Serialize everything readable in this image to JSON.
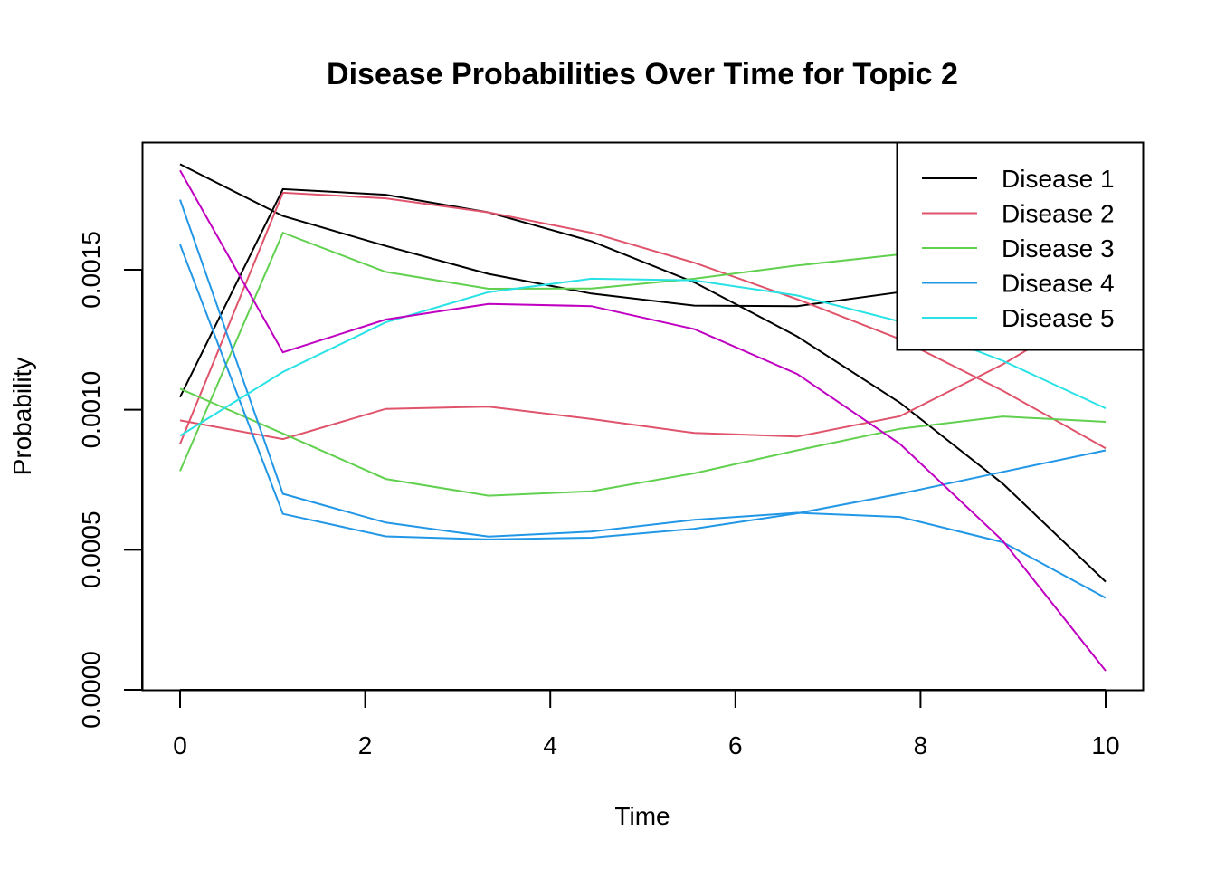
{
  "chart_data": {
    "type": "line",
    "title": "Disease Probabilities Over Time for Topic 2",
    "xlabel": "Time",
    "ylabel": "Probability",
    "xlim": [
      0,
      10
    ],
    "ylim": [
      0,
      0.0019
    ],
    "xticks": [
      0,
      2,
      4,
      6,
      8,
      10
    ],
    "xtick_labels": [
      "0",
      "2",
      "4",
      "6",
      "8",
      "10"
    ],
    "yticks": [
      0,
      0.0005,
      0.001,
      0.0015
    ],
    "ytick_labels": [
      "0.0000",
      "0.0005",
      "0.0010",
      "0.0015"
    ],
    "x": [
      0,
      1.111,
      2.222,
      3.333,
      4.444,
      5.556,
      6.667,
      7.778,
      8.889,
      10
    ],
    "legend_position": "top-right",
    "grid": false,
    "legend": [
      {
        "label": "Disease 1",
        "color": "#000000"
      },
      {
        "label": "Disease 2",
        "color": "#DF536B"
      },
      {
        "label": "Disease 3",
        "color": "#61D04F"
      },
      {
        "label": "Disease 4",
        "color": "#2297E6"
      },
      {
        "label": "Disease 5",
        "color": "#28E2E5"
      }
    ],
    "series": [
      {
        "color": "#000000",
        "values": [
          0.001045,
          0.001788,
          0.001768,
          0.001705,
          0.001602,
          0.001455,
          0.001262,
          0.001025,
          0.000736,
          0.000386
        ]
      },
      {
        "color": "#000000",
        "values": [
          0.001877,
          0.001692,
          0.001585,
          0.001485,
          0.001415,
          0.001372,
          0.00137,
          0.00142,
          0.00154,
          0.00166
        ]
      },
      {
        "color": "#DF536B",
        "values": [
          0.000878,
          0.001775,
          0.001755,
          0.001705,
          0.001632,
          0.001525,
          0.001395,
          0.001252,
          0.001068,
          0.000862
        ]
      },
      {
        "color": "#DF536B",
        "values": [
          0.000962,
          0.000895,
          0.001003,
          0.001011,
          0.000967,
          0.000917,
          0.000904,
          0.000977,
          0.001162,
          0.00138
        ]
      },
      {
        "color": "#61D04F",
        "values": [
          0.000781,
          0.001632,
          0.001492,
          0.001432,
          0.001433,
          0.001468,
          0.001515,
          0.001555,
          0.00159,
          0.00162
        ]
      },
      {
        "color": "#61D04F",
        "values": [
          0.001075,
          0.000915,
          0.000753,
          0.000693,
          0.000709,
          0.000773,
          0.000855,
          0.000932,
          0.000976,
          0.000957
        ]
      },
      {
        "color": "#2297E6",
        "values": [
          0.00175,
          0.0007,
          0.000597,
          0.000547,
          0.000565,
          0.000607,
          0.000632,
          0.000617,
          0.000527,
          0.000328
        ]
      },
      {
        "color": "#2297E6",
        "values": [
          0.00159,
          0.000628,
          0.000548,
          0.000537,
          0.000543,
          0.000575,
          0.00063,
          0.0007,
          0.000778,
          0.000855
        ]
      },
      {
        "color": "#28E2E5",
        "values": [
          0.000907,
          0.001135,
          0.001312,
          0.00142,
          0.001468,
          0.001462,
          0.001408,
          0.001315,
          0.001175,
          0.001005
        ]
      },
      {
        "color": "#C000C0",
        "values": [
          0.001855,
          0.001205,
          0.001322,
          0.001378,
          0.00137,
          0.001288,
          0.001128,
          0.000878,
          0.000532,
          6.8e-05
        ]
      }
    ]
  }
}
